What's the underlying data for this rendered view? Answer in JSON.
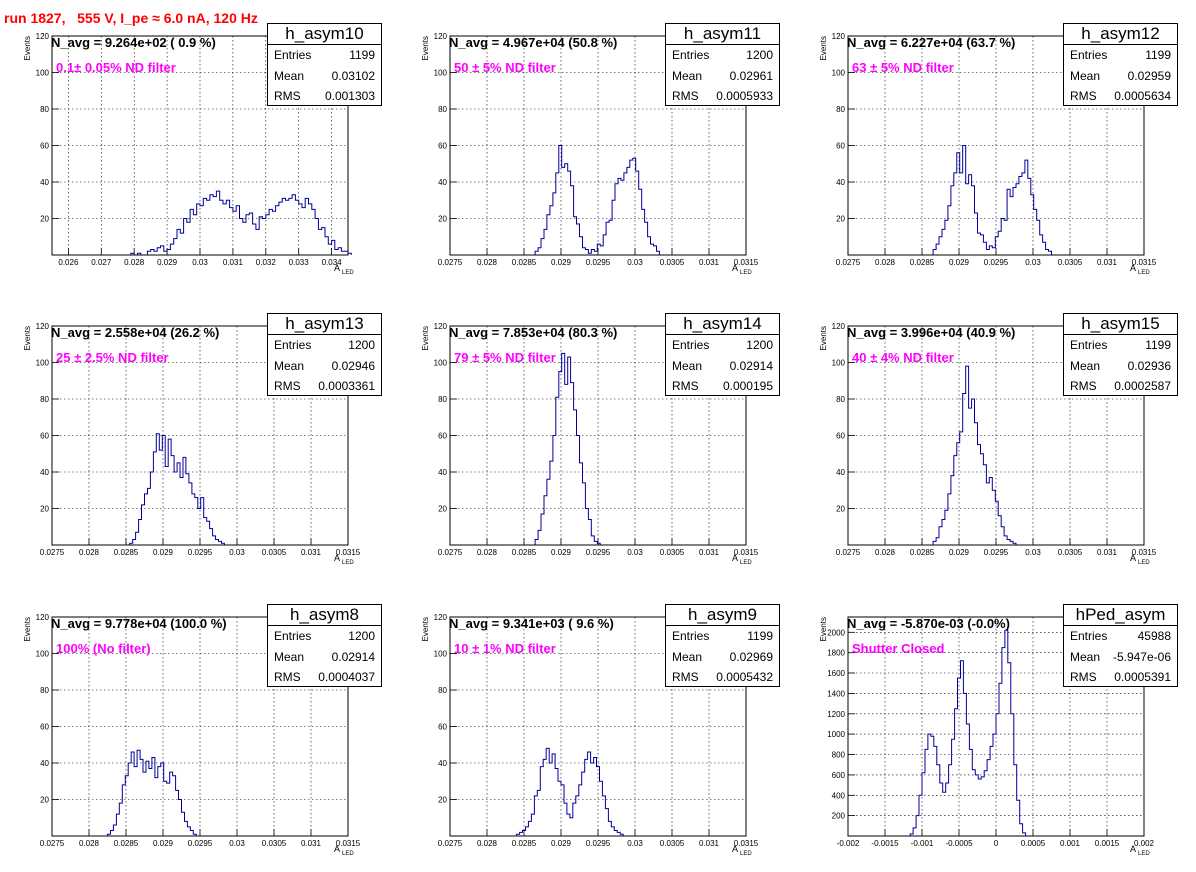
{
  "title": "run 1827,   555 V, I_pe ≈ 6.0 nA, 120 Hz",
  "colors": {
    "title": "#ff0000",
    "line": "#000099",
    "grid": "#000000",
    "filter_label": "#ff00ff"
  },
  "axis": {
    "ylabel": "Events",
    "xlabel_main": "A",
    "xlabel_sub": "LED"
  },
  "stat_labels": {
    "entries": "Entries",
    "mean": "Mean",
    "rms": "RMS"
  },
  "chart_data": [
    {
      "type": "bar",
      "name": "h_asym10",
      "navg": "N_avg = 9.264e+02 ( 0.9 %)",
      "filter": "0.1± 0.05% ND filter",
      "entries": "1199",
      "mean": "0.03102",
      "rms": "0.001303",
      "xlim": [
        0.0255,
        0.0345
      ],
      "ylim": [
        0,
        120
      ],
      "xticks": [
        0.026,
        0.027,
        0.028,
        0.029,
        0.03,
        0.031,
        0.032,
        0.033,
        0.034
      ],
      "xticklabels": [
        "0.026",
        "0.027",
        "0.028",
        "0.029",
        "0.03",
        "0.031",
        "0.032",
        "0.033",
        "0.034"
      ],
      "yticks": [
        20,
        40,
        60,
        80,
        100,
        120
      ],
      "yticklabels": [
        "20",
        "40",
        "60",
        "80",
        "100",
        "120"
      ],
      "bin_start": 0.0279,
      "bin_width": 0.0001,
      "values": [
        1,
        0,
        1,
        0,
        0,
        2,
        3,
        2,
        4,
        5,
        2,
        3,
        6,
        9,
        14,
        12,
        20,
        18,
        25,
        22,
        28,
        27,
        31,
        30,
        33,
        32,
        35,
        30,
        28,
        30,
        26,
        24,
        27,
        20,
        18,
        22,
        23,
        17,
        14,
        21,
        20,
        22,
        25,
        24,
        27,
        29,
        31,
        30,
        31,
        33,
        30,
        28,
        26,
        31,
        28,
        25,
        20,
        14,
        15,
        10,
        6,
        8,
        3,
        4,
        2,
        2,
        1
      ]
    },
    {
      "type": "bar",
      "name": "h_asym11",
      "navg": "N_avg = 4.967e+04 (50.8 %)",
      "filter": "50 ± 5% ND filter",
      "entries": "1200",
      "mean": "0.02961",
      "rms": "0.0005933",
      "xlim": [
        0.0275,
        0.0315
      ],
      "ylim": [
        0,
        120
      ],
      "xticks": [
        0.0275,
        0.028,
        0.0285,
        0.029,
        0.0295,
        0.03,
        0.0305,
        0.031,
        0.0315
      ],
      "xticklabels": [
        "0.0275",
        "0.028",
        "0.0285",
        "0.029",
        "0.0295",
        "0.03",
        "0.0305",
        "0.031",
        "0.0315"
      ],
      "yticks": [
        20,
        40,
        60,
        80,
        100,
        120
      ],
      "yticklabels": [
        "20",
        "40",
        "60",
        "80",
        "100",
        "120"
      ],
      "bin_start": 0.02865,
      "bin_width": 4e-05,
      "values": [
        2,
        4,
        9,
        14,
        22,
        27,
        34,
        45,
        60,
        48,
        50,
        46,
        38,
        21,
        17,
        10,
        4,
        3,
        1,
        3,
        2,
        6,
        5,
        11,
        18,
        19,
        30,
        39,
        42,
        41,
        45,
        48,
        52,
        53,
        46,
        36,
        25,
        18,
        10,
        6,
        5,
        2
      ]
    },
    {
      "type": "bar",
      "name": "h_asym12",
      "navg": "N_avg = 6.227e+04 (63.7 %)",
      "filter": "63 ± 5% ND filter",
      "entries": "1199",
      "mean": "0.02959",
      "rms": "0.0005634",
      "xlim": [
        0.0275,
        0.0315
      ],
      "ylim": [
        0,
        120
      ],
      "xticks": [
        0.0275,
        0.028,
        0.0285,
        0.029,
        0.0295,
        0.03,
        0.0305,
        0.031,
        0.0315
      ],
      "xticklabels": [
        "0.0275",
        "0.028",
        "0.0285",
        "0.029",
        "0.0295",
        "0.03",
        "0.0305",
        "0.031",
        "0.0315"
      ],
      "yticks": [
        20,
        40,
        60,
        80,
        100,
        120
      ],
      "yticklabels": [
        "20",
        "40",
        "60",
        "80",
        "100",
        "120"
      ],
      "bin_start": 0.02865,
      "bin_width": 4e-05,
      "values": [
        3,
        6,
        10,
        14,
        19,
        27,
        38,
        45,
        56,
        45,
        60,
        39,
        44,
        38,
        23,
        12,
        11,
        7,
        3,
        5,
        4,
        10,
        13,
        20,
        19,
        36,
        32,
        37,
        39,
        43,
        45,
        52,
        42,
        33,
        25,
        19,
        11,
        7,
        3,
        2
      ]
    },
    {
      "type": "bar",
      "name": "h_asym13",
      "navg": "N_avg = 2.558e+04 (26.2 %)",
      "filter": "25 ± 2.5% ND filter",
      "entries": "1200",
      "mean": "0.02946",
      "rms": "0.0003361",
      "xlim": [
        0.0275,
        0.0315
      ],
      "ylim": [
        0,
        120
      ],
      "xticks": [
        0.0275,
        0.028,
        0.0285,
        0.029,
        0.0295,
        0.03,
        0.0305,
        0.031,
        0.0315
      ],
      "xticklabels": [
        "0.0275",
        "0.028",
        "0.0285",
        "0.029",
        "0.0295",
        "0.03",
        "0.0305",
        "0.031",
        "0.0315"
      ],
      "yticks": [
        20,
        40,
        60,
        80,
        100,
        120
      ],
      "yticklabels": [
        "20",
        "40",
        "60",
        "80",
        "100",
        "120"
      ],
      "bin_start": 0.02855,
      "bin_width": 4e-05,
      "values": [
        1,
        3,
        7,
        14,
        22,
        28,
        31,
        40,
        51,
        61,
        52,
        60,
        43,
        58,
        49,
        40,
        45,
        37,
        48,
        39,
        34,
        28,
        26,
        20,
        26,
        15,
        13,
        9,
        5,
        3,
        2,
        1
      ]
    },
    {
      "type": "bar",
      "name": "h_asym14",
      "navg": "N_avg = 7.853e+04 (80.3 %)",
      "filter": "79 ± 5% ND filter",
      "entries": "1200",
      "mean": "0.02914",
      "rms": "0.000195",
      "xlim": [
        0.0275,
        0.0315
      ],
      "ylim": [
        0,
        120
      ],
      "xticks": [
        0.0275,
        0.028,
        0.0285,
        0.029,
        0.0295,
        0.03,
        0.0305,
        0.031,
        0.0315
      ],
      "xticklabels": [
        "0.0275",
        "0.028",
        "0.0285",
        "0.029",
        "0.0295",
        "0.03",
        "0.0305",
        "0.031",
        "0.0315"
      ],
      "yticks": [
        20,
        40,
        60,
        80,
        100,
        120
      ],
      "yticklabels": [
        "20",
        "40",
        "60",
        "80",
        "100",
        "120"
      ],
      "bin_start": 0.02865,
      "bin_width": 4e-05,
      "values": [
        3,
        8,
        17,
        27,
        36,
        46,
        60,
        81,
        95,
        105,
        88,
        103,
        89,
        74,
        60,
        45,
        34,
        20,
        14,
        5,
        2,
        1
      ]
    },
    {
      "type": "bar",
      "name": "h_asym15",
      "navg": "N_avg = 3.996e+04 (40.9 %)",
      "filter": "40 ± 4% ND filter",
      "entries": "1199",
      "mean": "0.02936",
      "rms": "0.0002587",
      "xlim": [
        0.0275,
        0.0315
      ],
      "ylim": [
        0,
        120
      ],
      "xticks": [
        0.0275,
        0.028,
        0.0285,
        0.029,
        0.0295,
        0.03,
        0.0305,
        0.031,
        0.0315
      ],
      "xticklabels": [
        "0.0275",
        "0.028",
        "0.0285",
        "0.029",
        "0.0295",
        "0.03",
        "0.0305",
        "0.031",
        "0.0315"
      ],
      "yticks": [
        20,
        40,
        60,
        80,
        100,
        120
      ],
      "yticklabels": [
        "20",
        "40",
        "60",
        "80",
        "100",
        "120"
      ],
      "bin_start": 0.02865,
      "bin_width": 4e-05,
      "values": [
        2,
        4,
        10,
        14,
        19,
        28,
        38,
        49,
        56,
        62,
        83,
        98,
        75,
        80,
        67,
        55,
        50,
        44,
        34,
        37,
        30,
        24,
        16,
        10,
        5,
        3,
        2,
        1
      ]
    },
    {
      "type": "bar",
      "name": "h_asym8",
      "navg": "N_avg = 9.778e+04 (100.0 %)",
      "filter": "100% (No filter)",
      "entries": "1200",
      "mean": "0.02914",
      "rms": "0.0004037",
      "xlim": [
        0.0275,
        0.0315
      ],
      "ylim": [
        0,
        120
      ],
      "xticks": [
        0.0275,
        0.028,
        0.0285,
        0.029,
        0.0295,
        0.03,
        0.0305,
        0.031,
        0.0315
      ],
      "xticklabels": [
        "0.0275",
        "0.028",
        "0.0285",
        "0.029",
        "0.0295",
        "0.03",
        "0.0305",
        "0.031",
        "0.0315"
      ],
      "yticks": [
        20,
        40,
        60,
        80,
        100,
        120
      ],
      "yticklabels": [
        "20",
        "40",
        "60",
        "80",
        "100",
        "120"
      ],
      "bin_start": 0.02825,
      "bin_width": 4e-05,
      "values": [
        1,
        3,
        6,
        12,
        18,
        28,
        33,
        40,
        46,
        38,
        47,
        42,
        35,
        41,
        37,
        43,
        32,
        38,
        40,
        30,
        29,
        35,
        33,
        25,
        20,
        13,
        8,
        5,
        3,
        1
      ]
    },
    {
      "type": "bar",
      "name": "h_asym9",
      "navg": "N_avg = 9.341e+03 ( 9.6 %)",
      "filter": "10 ± 1% ND filter",
      "entries": "1199",
      "mean": "0.02969",
      "rms": "0.0005432",
      "xlim": [
        0.0275,
        0.0315
      ],
      "ylim": [
        0,
        120
      ],
      "xticks": [
        0.0275,
        0.028,
        0.0285,
        0.029,
        0.0295,
        0.03,
        0.0305,
        0.031,
        0.0315
      ],
      "xticklabels": [
        "0.0275",
        "0.028",
        "0.0285",
        "0.029",
        "0.0295",
        "0.03",
        "0.0305",
        "0.031",
        "0.0315"
      ],
      "yticks": [
        20,
        40,
        60,
        80,
        100,
        120
      ],
      "yticklabels": [
        "20",
        "40",
        "60",
        "80",
        "100",
        "120"
      ],
      "bin_start": 0.0284,
      "bin_width": 4e-05,
      "values": [
        1,
        2,
        3,
        5,
        8,
        12,
        22,
        25,
        38,
        42,
        48,
        40,
        45,
        37,
        30,
        28,
        18,
        12,
        10,
        18,
        22,
        28,
        35,
        42,
        46,
        40,
        43,
        38,
        30,
        22,
        15,
        8,
        5,
        3,
        2,
        1
      ]
    },
    {
      "type": "bar",
      "name": "hPed_asym",
      "navg": "N_avg = -5.870e-03 (-0.0%)",
      "filter": "Shutter Closed",
      "entries": "45988",
      "mean": "-5.947e-06",
      "rms": "0.0005391",
      "xlim": [
        -0.002,
        0.002
      ],
      "ylim": [
        0,
        2150
      ],
      "xticks": [
        -0.002,
        -0.0015,
        -0.001,
        -0.0005,
        0,
        0.0005,
        0.001,
        0.0015,
        0.002
      ],
      "xticklabels": [
        "-0.002",
        "-0.0015",
        "-0.001",
        "-0.0005",
        "0",
        "0.0005",
        "0.001",
        "0.0015",
        "0.002"
      ],
      "yticks": [
        200,
        400,
        600,
        800,
        1000,
        1200,
        1400,
        1600,
        1800,
        2000
      ],
      "yticklabels": [
        "200",
        "400",
        "600",
        "800",
        "1000",
        "1200",
        "1400",
        "1600",
        "1800",
        "2000"
      ],
      "bin_start": -0.00116,
      "bin_width": 4e-05,
      "values": [
        20,
        80,
        200,
        400,
        620,
        850,
        1000,
        980,
        880,
        700,
        520,
        430,
        520,
        700,
        950,
        1250,
        1550,
        1720,
        1400,
        1100,
        850,
        650,
        600,
        560,
        580,
        640,
        750,
        880,
        1000,
        1200,
        1500,
        1850,
        2020,
        1700,
        1200,
        700,
        350,
        120,
        30
      ]
    }
  ]
}
